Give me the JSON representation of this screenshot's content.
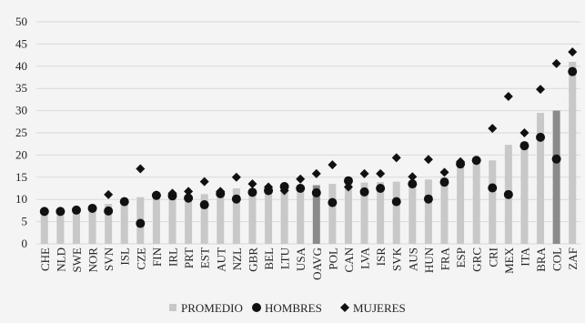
{
  "chart_data": {
    "type": "bar",
    "title": "",
    "xlabel": "",
    "ylabel": "",
    "ylim": [
      0,
      50
    ],
    "yticks": [
      0,
      5,
      10,
      15,
      20,
      25,
      30,
      35,
      40,
      45,
      50
    ],
    "grid": true,
    "legend_position": "bottom",
    "colors": {
      "promedio": "#c8c8c8",
      "highlight": "#8a8a8a",
      "hombres": "#111111",
      "mujeres": "#111111",
      "grid": "#d9d9d9",
      "background": "#f4f4f4"
    },
    "highlight_categories": [
      "OAVG",
      "COL"
    ],
    "categories": [
      "CHE",
      "NLD",
      "SWE",
      "NOR",
      "SVN",
      "ISL",
      "CZE",
      "FIN",
      "IRL",
      "PRT",
      "EST",
      "AUT",
      "NZL",
      "GBR",
      "BEL",
      "LTU",
      "USA",
      "OAVG",
      "POL",
      "CAN",
      "LVA",
      "ISR",
      "SVK",
      "AUS",
      "HUN",
      "FRA",
      "ESP",
      "GRC",
      "CRI",
      "MEX",
      "ITA",
      "BRA",
      "COL",
      "ZAF"
    ],
    "series": [
      {
        "name": "PROMEDIO",
        "kind": "bar",
        "values": [
          7.2,
          7.5,
          7.6,
          8.0,
          9.0,
          9.5,
          10.5,
          10.9,
          11.0,
          11.0,
          11.2,
          11.5,
          12.5,
          12.5,
          12.5,
          12.6,
          13.0,
          13.2,
          13.5,
          13.5,
          13.8,
          13.9,
          14.0,
          14.2,
          14.5,
          15.0,
          18.7,
          18.8,
          18.8,
          22.3,
          23.0,
          29.5,
          30.0,
          41.0
        ]
      },
      {
        "name": "HOMBRES",
        "kind": "marker-circle",
        "values": [
          7.3,
          7.3,
          7.6,
          8.0,
          7.4,
          9.5,
          4.6,
          10.9,
          10.8,
          10.3,
          8.8,
          11.3,
          10.1,
          11.6,
          12.0,
          12.9,
          12.5,
          11.5,
          9.3,
          14.2,
          11.7,
          12.5,
          9.5,
          13.5,
          10.1,
          13.9,
          18.0,
          18.8,
          12.6,
          11.1,
          22.1,
          24.0,
          19.1,
          38.8
        ]
      },
      {
        "name": "MUJERES",
        "kind": "marker-diamond",
        "values": [
          7.3,
          7.3,
          7.6,
          8.0,
          11.1,
          9.5,
          16.9,
          11.0,
          11.4,
          11.8,
          14.0,
          11.8,
          15.0,
          13.5,
          12.8,
          12.0,
          14.6,
          15.8,
          17.8,
          12.8,
          15.8,
          15.8,
          19.4,
          15.1,
          19.0,
          16.1,
          18.5,
          18.8,
          26.0,
          33.2,
          25.0,
          34.8,
          40.6,
          43.2
        ]
      }
    ],
    "legend": [
      {
        "label": "PROMEDIO",
        "symbol": "square"
      },
      {
        "label": "HOMBRES",
        "symbol": "circle"
      },
      {
        "label": "MUJERES",
        "symbol": "diamond"
      }
    ]
  }
}
